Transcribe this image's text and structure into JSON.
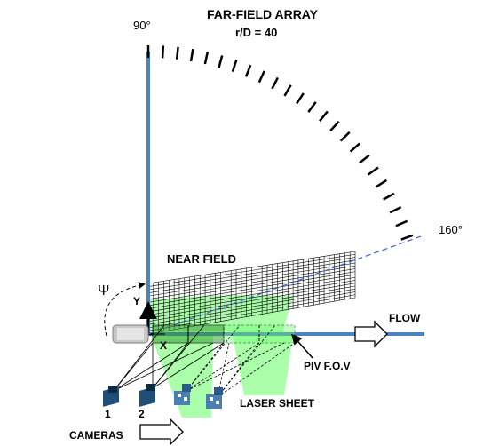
{
  "header": {
    "title": "FAR-FIELD ARRAY",
    "subtitle": "r/D = 40"
  },
  "angles": {
    "start": "90°",
    "end": "160°"
  },
  "labels": {
    "near_field": "NEAR FIELD",
    "psi": "Ψ",
    "y_axis": "Y",
    "x_axis": "X",
    "flow": "FLOW",
    "piv_fov": "PIV  F.O.V",
    "laser_sheet": "LASER SHEET",
    "cameras": "CAMERAS",
    "camera_1": "1",
    "camera_2": "2"
  },
  "colors": {
    "axis_blue": "#4f81bd",
    "laser_green": "#66ff66",
    "dashed_blue": "#3a5fcd",
    "grid": "#000000",
    "camera_blue": "#1f4e79"
  },
  "far_field": {
    "ticks_shown": 24
  }
}
